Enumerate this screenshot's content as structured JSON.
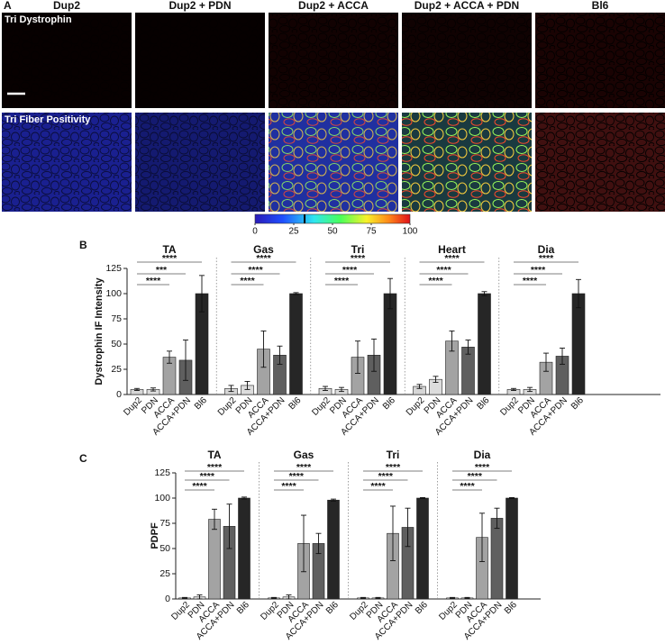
{
  "panel_a": {
    "label": "A",
    "columns": [
      "Dup2",
      "Dup2 + PDN",
      "Dup2 + ACCA",
      "Dup2 + ACCA + PDN",
      "Bl6"
    ],
    "rows": [
      "Tri Dystrophin",
      "Tri Fiber Positivity"
    ],
    "colorbar": {
      "ticks": [
        0,
        25,
        50,
        75,
        100
      ],
      "lim": [
        0,
        100
      ],
      "marker_value": 32
    }
  },
  "chart_data": [
    {
      "type": "bar",
      "label": "B",
      "ylabel": "Dystrophin IF Intensity",
      "ylim": [
        0,
        125
      ],
      "yticks": [
        0,
        25,
        50,
        75,
        100,
        125
      ],
      "categories": [
        "Dup2",
        "PDN",
        "ACCA",
        "ACCA+PDN",
        "Bl6"
      ],
      "colors": [
        "#d6d6d6",
        "#dcdcdc",
        "#a3a3a3",
        "#5f5f5f",
        "#262626"
      ],
      "groups": [
        {
          "title": "TA",
          "values": [
            5,
            5,
            37,
            34,
            100
          ],
          "errors": [
            1,
            1.5,
            6,
            20,
            18
          ],
          "significance": [
            "****",
            "***",
            "****"
          ]
        },
        {
          "title": "Gas",
          "values": [
            6,
            9,
            45,
            39,
            100
          ],
          "errors": [
            3,
            4,
            18,
            9,
            1
          ],
          "significance": [
            "****",
            "****",
            "****"
          ]
        },
        {
          "title": "Tri",
          "values": [
            6,
            5,
            37,
            39,
            100
          ],
          "errors": [
            2,
            2,
            16,
            16,
            15
          ],
          "significance": [
            "****",
            "****",
            "****"
          ]
        },
        {
          "title": "Heart",
          "values": [
            8,
            15,
            53,
            47,
            100
          ],
          "errors": [
            2,
            3,
            10,
            7,
            2
          ],
          "significance": [
            "****",
            "****",
            "****"
          ]
        },
        {
          "title": "Dia",
          "values": [
            5,
            5,
            32,
            38,
            100
          ],
          "errors": [
            1,
            2,
            9,
            8,
            14
          ],
          "significance": [
            "****",
            "****",
            "****"
          ]
        }
      ]
    },
    {
      "type": "bar",
      "label": "C",
      "ylabel": "PDPF",
      "ylim": [
        0,
        125
      ],
      "yticks": [
        0,
        25,
        50,
        75,
        100,
        125
      ],
      "categories": [
        "Dup2",
        "PDN",
        "ACCA",
        "ACCA+PDN",
        "Bl6"
      ],
      "colors": [
        "#d6d6d6",
        "#dcdcdc",
        "#a3a3a3",
        "#5f5f5f",
        "#262626"
      ],
      "groups": [
        {
          "title": "TA",
          "values": [
            1,
            2,
            79,
            72,
            100
          ],
          "errors": [
            0.5,
            2,
            10,
            22,
            1
          ],
          "significance": [
            "****",
            "****",
            "****"
          ]
        },
        {
          "title": "Gas",
          "values": [
            1,
            2,
            55,
            55,
            98
          ],
          "errors": [
            0.5,
            2,
            28,
            10,
            1
          ],
          "significance": [
            "****",
            "****",
            "****"
          ]
        },
        {
          "title": "Tri",
          "values": [
            1,
            1,
            65,
            71,
            100
          ],
          "errors": [
            0.5,
            0.5,
            27,
            19,
            0.5
          ],
          "significance": [
            "****",
            "****",
            "****"
          ]
        },
        {
          "title": "Dia",
          "values": [
            1,
            1,
            61,
            80,
            100
          ],
          "errors": [
            0.5,
            0.5,
            24,
            10,
            0.5
          ],
          "significance": [
            "****",
            "****",
            "****"
          ]
        }
      ]
    }
  ]
}
